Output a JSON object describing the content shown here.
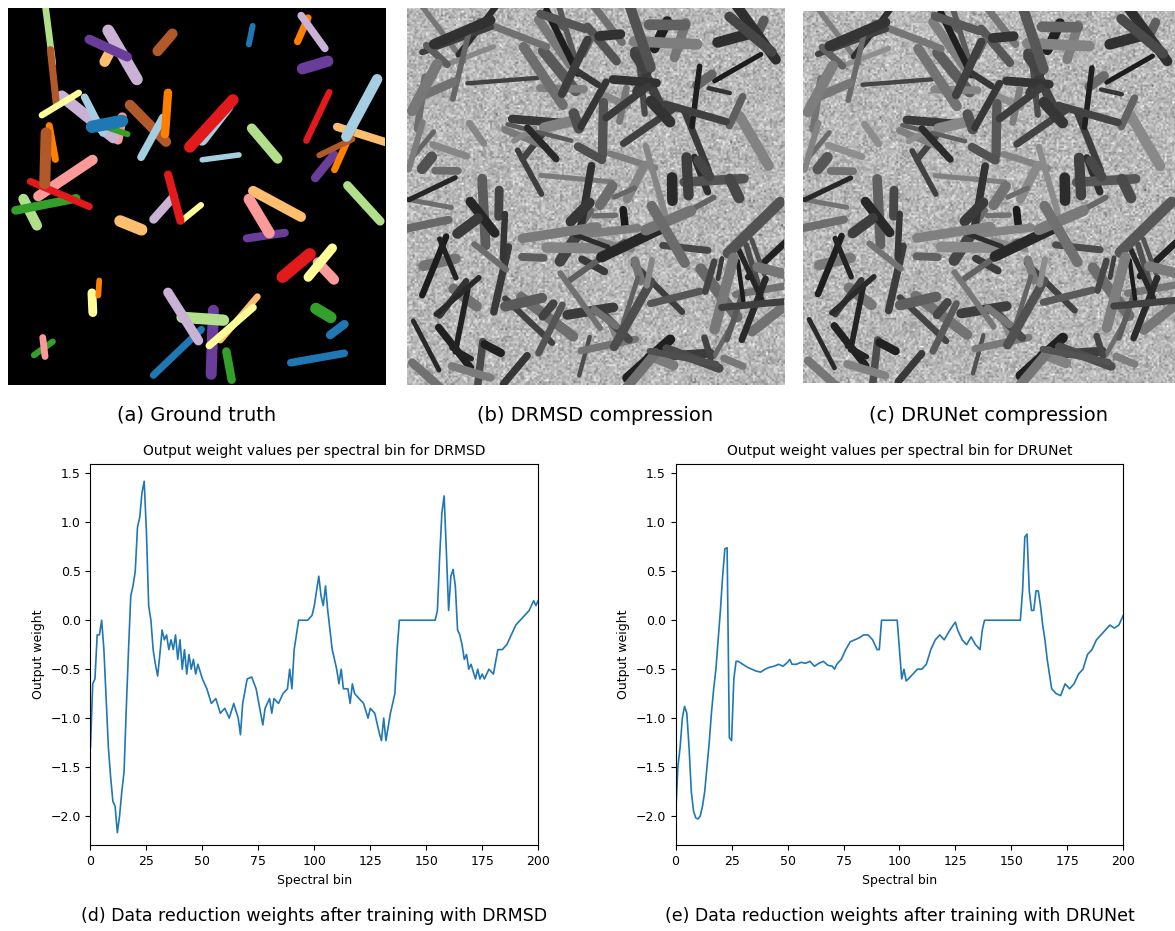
{
  "panels": [
    {
      "caption": "(a) Ground truth",
      "kind": "segmentation"
    },
    {
      "caption": "(b) DRMSD compression",
      "kind": "grayscale"
    },
    {
      "caption": "(c) DRUNet compression",
      "kind": "grayscale"
    }
  ],
  "chart_data": [
    {
      "type": "line",
      "title": "Output weight values per spectral bin for DRMSD",
      "xlabel": "Spectral bin",
      "ylabel": "Output weight",
      "caption": "(d) Data reduction weights after training with DRMSD",
      "color": "#1f77b4",
      "xlim": [
        0,
        200
      ],
      "ylim": [
        -2.3,
        1.6
      ],
      "xticks": [
        0,
        25,
        50,
        75,
        100,
        125,
        150,
        175,
        200
      ],
      "yticks": [
        {
          "value": -2.0,
          "label": "−2.0"
        },
        {
          "value": -1.5,
          "label": "−1.5"
        },
        {
          "value": -1.0,
          "label": "−1.0"
        },
        {
          "value": -0.5,
          "label": "−0.5"
        },
        0.0,
        0.5,
        1.0,
        1.5
      ],
      "x": [
        0,
        1,
        2,
        3,
        4,
        5,
        6,
        7,
        8,
        9,
        10,
        11,
        12,
        13,
        14,
        15,
        16,
        17,
        18,
        19,
        20,
        21,
        22,
        23,
        24,
        25,
        26,
        27,
        28,
        29,
        30,
        31,
        32,
        33,
        34,
        35,
        36,
        37,
        38,
        39,
        40,
        41,
        42,
        43,
        44,
        45,
        46,
        47,
        48,
        50,
        52,
        54,
        56,
        58,
        60,
        62,
        64,
        66,
        67,
        68,
        70,
        72,
        74,
        76,
        77,
        78,
        80,
        81,
        82,
        84,
        86,
        88,
        89,
        90,
        91,
        92,
        93,
        95,
        97,
        99,
        100,
        101,
        102,
        103,
        104,
        105,
        106,
        107,
        108,
        110,
        111,
        112,
        113,
        115,
        116,
        117,
        118,
        120,
        122,
        124,
        125,
        127,
        129,
        130,
        131,
        132,
        134,
        136,
        137,
        138,
        140,
        145,
        150,
        154,
        155,
        156,
        157,
        158,
        159,
        160,
        161,
        162,
        163,
        164,
        165,
        166,
        167,
        168,
        169,
        170,
        172,
        173,
        174,
        175,
        176,
        178,
        180,
        182,
        184,
        186,
        188,
        190,
        192,
        194,
        196,
        198,
        199,
        200
      ],
      "values": [
        -1.3,
        -0.65,
        -0.6,
        -0.15,
        -0.15,
        0.0,
        -0.3,
        -0.8,
        -1.3,
        -1.6,
        -1.85,
        -1.9,
        -2.17,
        -2.0,
        -1.75,
        -1.55,
        -0.9,
        -0.3,
        0.25,
        0.35,
        0.5,
        0.95,
        1.05,
        1.3,
        1.42,
        0.9,
        0.15,
        0.0,
        -0.3,
        -0.45,
        -0.57,
        -0.35,
        -0.1,
        -0.2,
        -0.15,
        -0.3,
        -0.2,
        -0.3,
        -0.15,
        -0.4,
        -0.2,
        -0.5,
        -0.3,
        -0.55,
        -0.35,
        -0.5,
        -0.4,
        -0.55,
        -0.45,
        -0.6,
        -0.7,
        -0.85,
        -0.8,
        -0.95,
        -0.9,
        -1.0,
        -0.85,
        -1.0,
        -1.17,
        -0.85,
        -0.6,
        -0.58,
        -0.7,
        -0.95,
        -1.07,
        -0.9,
        -0.8,
        -0.95,
        -0.8,
        -0.85,
        -0.75,
        -0.7,
        -0.5,
        -0.7,
        -0.3,
        -0.15,
        0.0,
        0.0,
        0.0,
        0.05,
        0.15,
        0.3,
        0.45,
        0.25,
        0.15,
        0.35,
        0.1,
        -0.1,
        -0.3,
        -0.5,
        -0.65,
        -0.5,
        -0.7,
        -0.7,
        -0.85,
        -0.65,
        -0.75,
        -0.8,
        -0.85,
        -1.0,
        -0.9,
        -0.95,
        -1.15,
        -1.23,
        -1.0,
        -1.23,
        -0.95,
        -0.75,
        -0.3,
        0.0,
        0.0,
        0.0,
        0.0,
        0.0,
        0.1,
        0.65,
        1.1,
        1.27,
        0.7,
        0.1,
        0.45,
        0.52,
        0.35,
        -0.1,
        -0.15,
        -0.25,
        -0.4,
        -0.35,
        -0.5,
        -0.45,
        -0.6,
        -0.5,
        -0.6,
        -0.55,
        -0.6,
        -0.5,
        -0.55,
        -0.3,
        -0.3,
        -0.25,
        -0.15,
        -0.05,
        0.0,
        0.05,
        0.1,
        0.2,
        0.15,
        0.2
      ]
    },
    {
      "type": "line",
      "title": "Output weight values per spectral bin for DRUNet",
      "xlabel": "Spectral bin",
      "ylabel": "Output weight",
      "caption": "(e) Data reduction weights after training with DRUNet",
      "color": "#1f77b4",
      "xlim": [
        0,
        200
      ],
      "ylim": [
        -2.3,
        1.6
      ],
      "xticks": [
        0,
        25,
        50,
        75,
        100,
        125,
        150,
        175,
        200
      ],
      "yticks": [
        {
          "value": -2.0,
          "label": "−2.0"
        },
        {
          "value": -1.5,
          "label": "−1.5"
        },
        {
          "value": -1.0,
          "label": "−1.0"
        },
        {
          "value": -0.5,
          "label": "−0.5"
        },
        0.0,
        0.5,
        1.0,
        1.5
      ],
      "x": [
        0,
        1,
        2,
        3,
        4,
        5,
        6,
        7,
        8,
        9,
        10,
        11,
        12,
        13,
        14,
        15,
        16,
        17,
        18,
        19,
        20,
        21,
        22,
        23,
        24,
        25,
        26,
        27,
        28,
        30,
        32,
        34,
        36,
        38,
        40,
        42,
        44,
        46,
        48,
        50,
        51,
        52,
        54,
        56,
        58,
        60,
        62,
        64,
        66,
        68,
        70,
        71,
        72,
        74,
        76,
        78,
        80,
        82,
        84,
        86,
        88,
        90,
        91,
        92,
        95,
        98,
        99,
        100,
        101,
        102,
        103,
        104,
        106,
        108,
        110,
        112,
        114,
        116,
        118,
        120,
        122,
        124,
        125,
        126,
        128,
        130,
        132,
        134,
        136,
        137,
        138,
        145,
        150,
        154,
        155,
        156,
        157,
        158,
        159,
        160,
        161,
        162,
        163,
        164,
        165,
        166,
        167,
        168,
        170,
        172,
        174,
        176,
        178,
        180,
        182,
        184,
        186,
        188,
        190,
        192,
        194,
        196,
        198,
        200
      ],
      "values": [
        -2.0,
        -1.5,
        -1.3,
        -1.0,
        -0.88,
        -0.95,
        -1.3,
        -1.75,
        -1.95,
        -2.02,
        -2.03,
        -2.0,
        -1.9,
        -1.75,
        -1.5,
        -1.25,
        -0.95,
        -0.7,
        -0.5,
        -0.2,
        0.1,
        0.45,
        0.73,
        0.74,
        -1.2,
        -1.23,
        -0.6,
        -0.42,
        -0.42,
        -0.45,
        -0.48,
        -0.5,
        -0.52,
        -0.53,
        -0.5,
        -0.48,
        -0.47,
        -0.45,
        -0.47,
        -0.43,
        -0.4,
        -0.45,
        -0.45,
        -0.43,
        -0.44,
        -0.42,
        -0.47,
        -0.44,
        -0.42,
        -0.46,
        -0.47,
        -0.5,
        -0.45,
        -0.4,
        -0.3,
        -0.22,
        -0.2,
        -0.18,
        -0.15,
        -0.15,
        -0.2,
        -0.3,
        -0.3,
        0.0,
        0.0,
        0.0,
        0.0,
        -0.3,
        -0.6,
        -0.5,
        -0.62,
        -0.6,
        -0.55,
        -0.5,
        -0.5,
        -0.45,
        -0.3,
        -0.2,
        -0.15,
        -0.2,
        -0.12,
        -0.05,
        -0.02,
        -0.1,
        -0.2,
        -0.25,
        -0.17,
        -0.25,
        -0.3,
        -0.1,
        0.0,
        0.0,
        0.0,
        0.0,
        0.3,
        0.85,
        0.88,
        0.3,
        0.1,
        0.1,
        0.3,
        0.3,
        0.15,
        -0.05,
        -0.2,
        -0.4,
        -0.55,
        -0.7,
        -0.75,
        -0.77,
        -0.65,
        -0.7,
        -0.65,
        -0.55,
        -0.5,
        -0.35,
        -0.3,
        -0.2,
        -0.15,
        -0.1,
        -0.05,
        -0.08,
        -0.05,
        0.05
      ]
    }
  ]
}
